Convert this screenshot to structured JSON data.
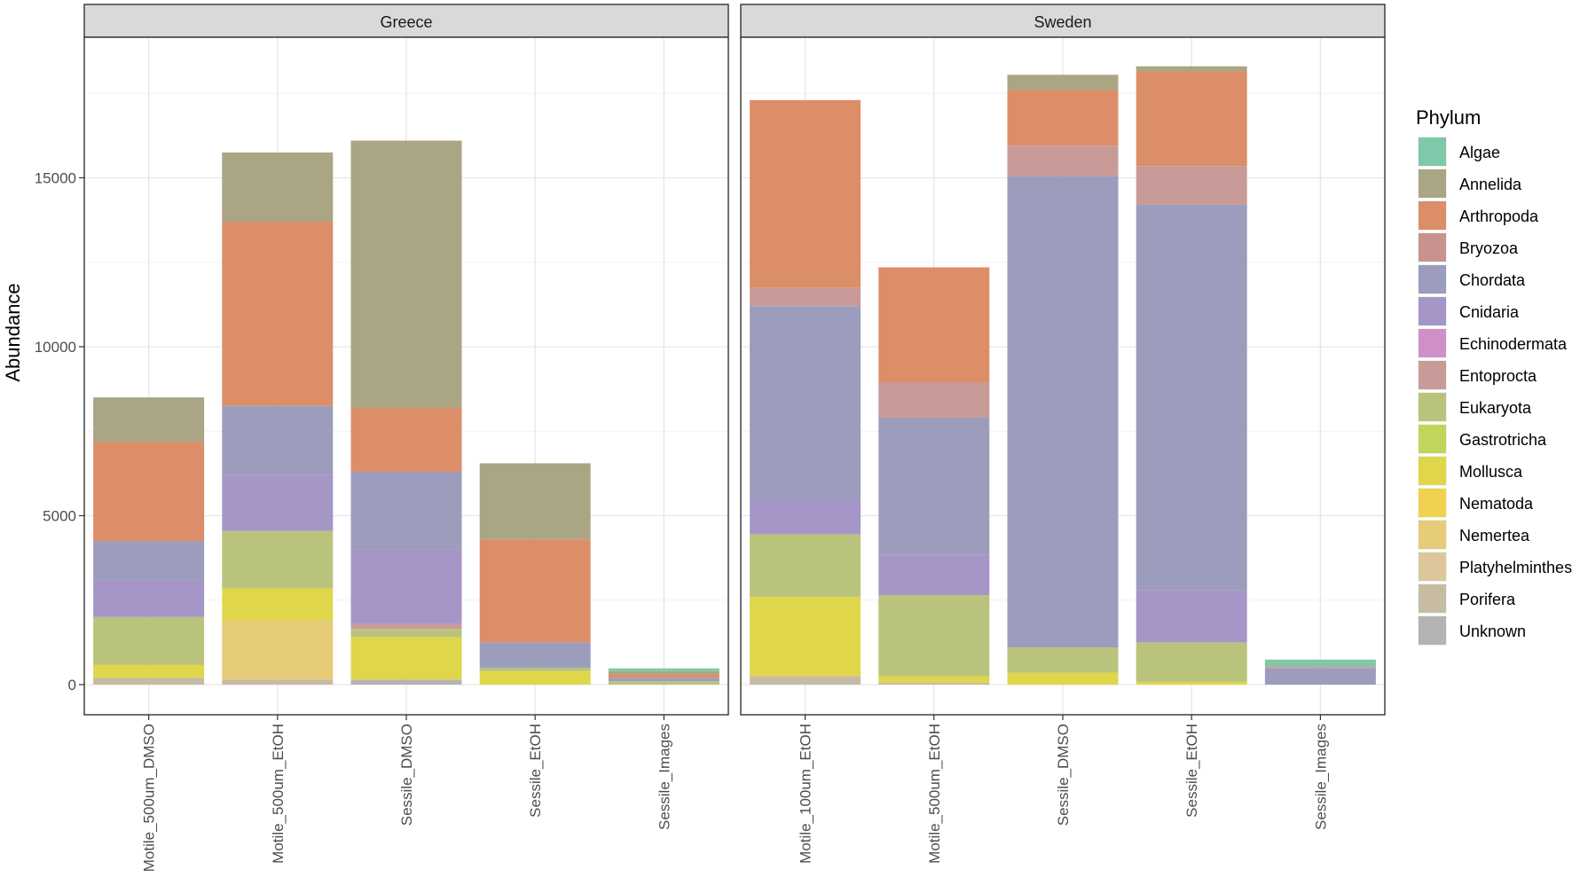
{
  "chart_data": {
    "type": "bar",
    "stacked": true,
    "ylabel": "Abundance",
    "xlabel": "",
    "ylim": [
      0,
      19500
    ],
    "yticks": [
      0,
      5000,
      10000,
      15000
    ],
    "legend": {
      "title": "Phylum",
      "placement": "right"
    },
    "phyla": [
      {
        "name": "Algae",
        "color": "#7fc8a9"
      },
      {
        "name": "Annelida",
        "color": "#aaa684"
      },
      {
        "name": "Arthropoda",
        "color": "#dc8e69"
      },
      {
        "name": "Bryozoa",
        "color": "#c8938e"
      },
      {
        "name": "Chordata",
        "color": "#9c9dbc"
      },
      {
        "name": "Cnidaria",
        "color": "#a696c8"
      },
      {
        "name": "Echinodermata",
        "color": "#cf90c7"
      },
      {
        "name": "Entoprocta",
        "color": "#c89b99"
      },
      {
        "name": "Eukaryota",
        "color": "#bac37b"
      },
      {
        "name": "Gastrotricha",
        "color": "#bfd65a"
      },
      {
        "name": "Mollusca",
        "color": "#dfd64a"
      },
      {
        "name": "Nematoda",
        "color": "#f0d24e"
      },
      {
        "name": "Nemertea",
        "color": "#e6cb78"
      },
      {
        "name": "Platyhelminthes",
        "color": "#dcc79b"
      },
      {
        "name": "Porifera",
        "color": "#c8bba4"
      },
      {
        "name": "Unknown",
        "color": "#b3b3b3"
      }
    ],
    "panels": [
      {
        "title": "Greece",
        "bars": [
          {
            "category": "Motile_500um_DMSO",
            "segments": [
              {
                "phylum": "Porifera",
                "value": 200
              },
              {
                "phylum": "Mollusca",
                "value": 380
              },
              {
                "phylum": "Eukaryota",
                "value": 1420
              },
              {
                "phylum": "Cnidaria",
                "value": 1100
              },
              {
                "phylum": "Chordata",
                "value": 1150
              },
              {
                "phylum": "Arthropoda",
                "value": 2930
              },
              {
                "phylum": "Annelida",
                "value": 1320
              }
            ]
          },
          {
            "category": "Motile_500um_EtOH",
            "segments": [
              {
                "phylum": "Porifera",
                "value": 150
              },
              {
                "phylum": "Nemertea",
                "value": 1750
              },
              {
                "phylum": "Mollusca",
                "value": 950
              },
              {
                "phylum": "Eukaryota",
                "value": 1700
              },
              {
                "phylum": "Cnidaria",
                "value": 1650
              },
              {
                "phylum": "Chordata",
                "value": 2050
              },
              {
                "phylum": "Arthropoda",
                "value": 5450
              },
              {
                "phylum": "Annelida",
                "value": 2050
              }
            ]
          },
          {
            "category": "Sessile_DMSO",
            "segments": [
              {
                "phylum": "Unknown",
                "value": 150
              },
              {
                "phylum": "Mollusca",
                "value": 1250
              },
              {
                "phylum": "Eukaryota",
                "value": 250
              },
              {
                "phylum": "Entoprocta",
                "value": 150
              },
              {
                "phylum": "Cnidaria",
                "value": 2200
              },
              {
                "phylum": "Chordata",
                "value": 2300
              },
              {
                "phylum": "Arthropoda",
                "value": 1900
              },
              {
                "phylum": "Annelida",
                "value": 7900
              }
            ]
          },
          {
            "category": "Sessile_EtOH",
            "segments": [
              {
                "phylum": "Mollusca",
                "value": 400
              },
              {
                "phylum": "Eukaryota",
                "value": 100
              },
              {
                "phylum": "Chordata",
                "value": 750
              },
              {
                "phylum": "Arthropoda",
                "value": 3050
              },
              {
                "phylum": "Annelida",
                "value": 2250
              }
            ]
          },
          {
            "category": "Sessile_Images",
            "segments": [
              {
                "phylum": "Eukaryota",
                "value": 100
              },
              {
                "phylum": "Chordata",
                "value": 100
              },
              {
                "phylum": "Arthropoda",
                "value": 100
              },
              {
                "phylum": "Annelida",
                "value": 100
              },
              {
                "phylum": "Algae",
                "value": 80
              }
            ]
          }
        ]
      },
      {
        "title": "Sweden",
        "bars": [
          {
            "category": "Motile_100um_EtOH",
            "segments": [
              {
                "phylum": "Porifera",
                "value": 250
              },
              {
                "phylum": "Nematoda",
                "value": 50
              },
              {
                "phylum": "Mollusca",
                "value": 2300
              },
              {
                "phylum": "Eukaryota",
                "value": 1850
              },
              {
                "phylum": "Cnidaria",
                "value": 1050
              },
              {
                "phylum": "Chordata",
                "value": 5700
              },
              {
                "phylum": "Entoprocta",
                "value": 550
              },
              {
                "phylum": "Arthropoda",
                "value": 5550
              }
            ]
          },
          {
            "category": "Motile_500um_EtOH",
            "segments": [
              {
                "phylum": "Porifera",
                "value": 60
              },
              {
                "phylum": "Mollusca",
                "value": 190
              },
              {
                "phylum": "Eukaryota",
                "value": 2400
              },
              {
                "phylum": "Cnidaria",
                "value": 1200
              },
              {
                "phylum": "Chordata",
                "value": 4050
              },
              {
                "phylum": "Entoprocta",
                "value": 1050
              },
              {
                "phylum": "Arthropoda",
                "value": 3400
              }
            ]
          },
          {
            "category": "Sessile_DMSO",
            "segments": [
              {
                "phylum": "Mollusca",
                "value": 350
              },
              {
                "phylum": "Eukaryota",
                "value": 750
              },
              {
                "phylum": "Chordata",
                "value": 13950
              },
              {
                "phylum": "Entoprocta",
                "value": 900
              },
              {
                "phylum": "Arthropoda",
                "value": 1650
              },
              {
                "phylum": "Annelida",
                "value": 450
              }
            ]
          },
          {
            "category": "Sessile_EtOH",
            "segments": [
              {
                "phylum": "Mollusca",
                "value": 80
              },
              {
                "phylum": "Eukaryota",
                "value": 1170
              },
              {
                "phylum": "Cnidaria",
                "value": 1550
              },
              {
                "phylum": "Chordata",
                "value": 11400
              },
              {
                "phylum": "Entoprocta",
                "value": 1150
              },
              {
                "phylum": "Arthropoda",
                "value": 2800
              },
              {
                "phylum": "Annelida",
                "value": 150
              }
            ]
          },
          {
            "category": "Sessile_Images",
            "segments": [
              {
                "phylum": "Chordata",
                "value": 480
              },
              {
                "phylum": "Entoprocta",
                "value": 60
              },
              {
                "phylum": "Algae",
                "value": 200
              }
            ]
          }
        ]
      }
    ]
  }
}
